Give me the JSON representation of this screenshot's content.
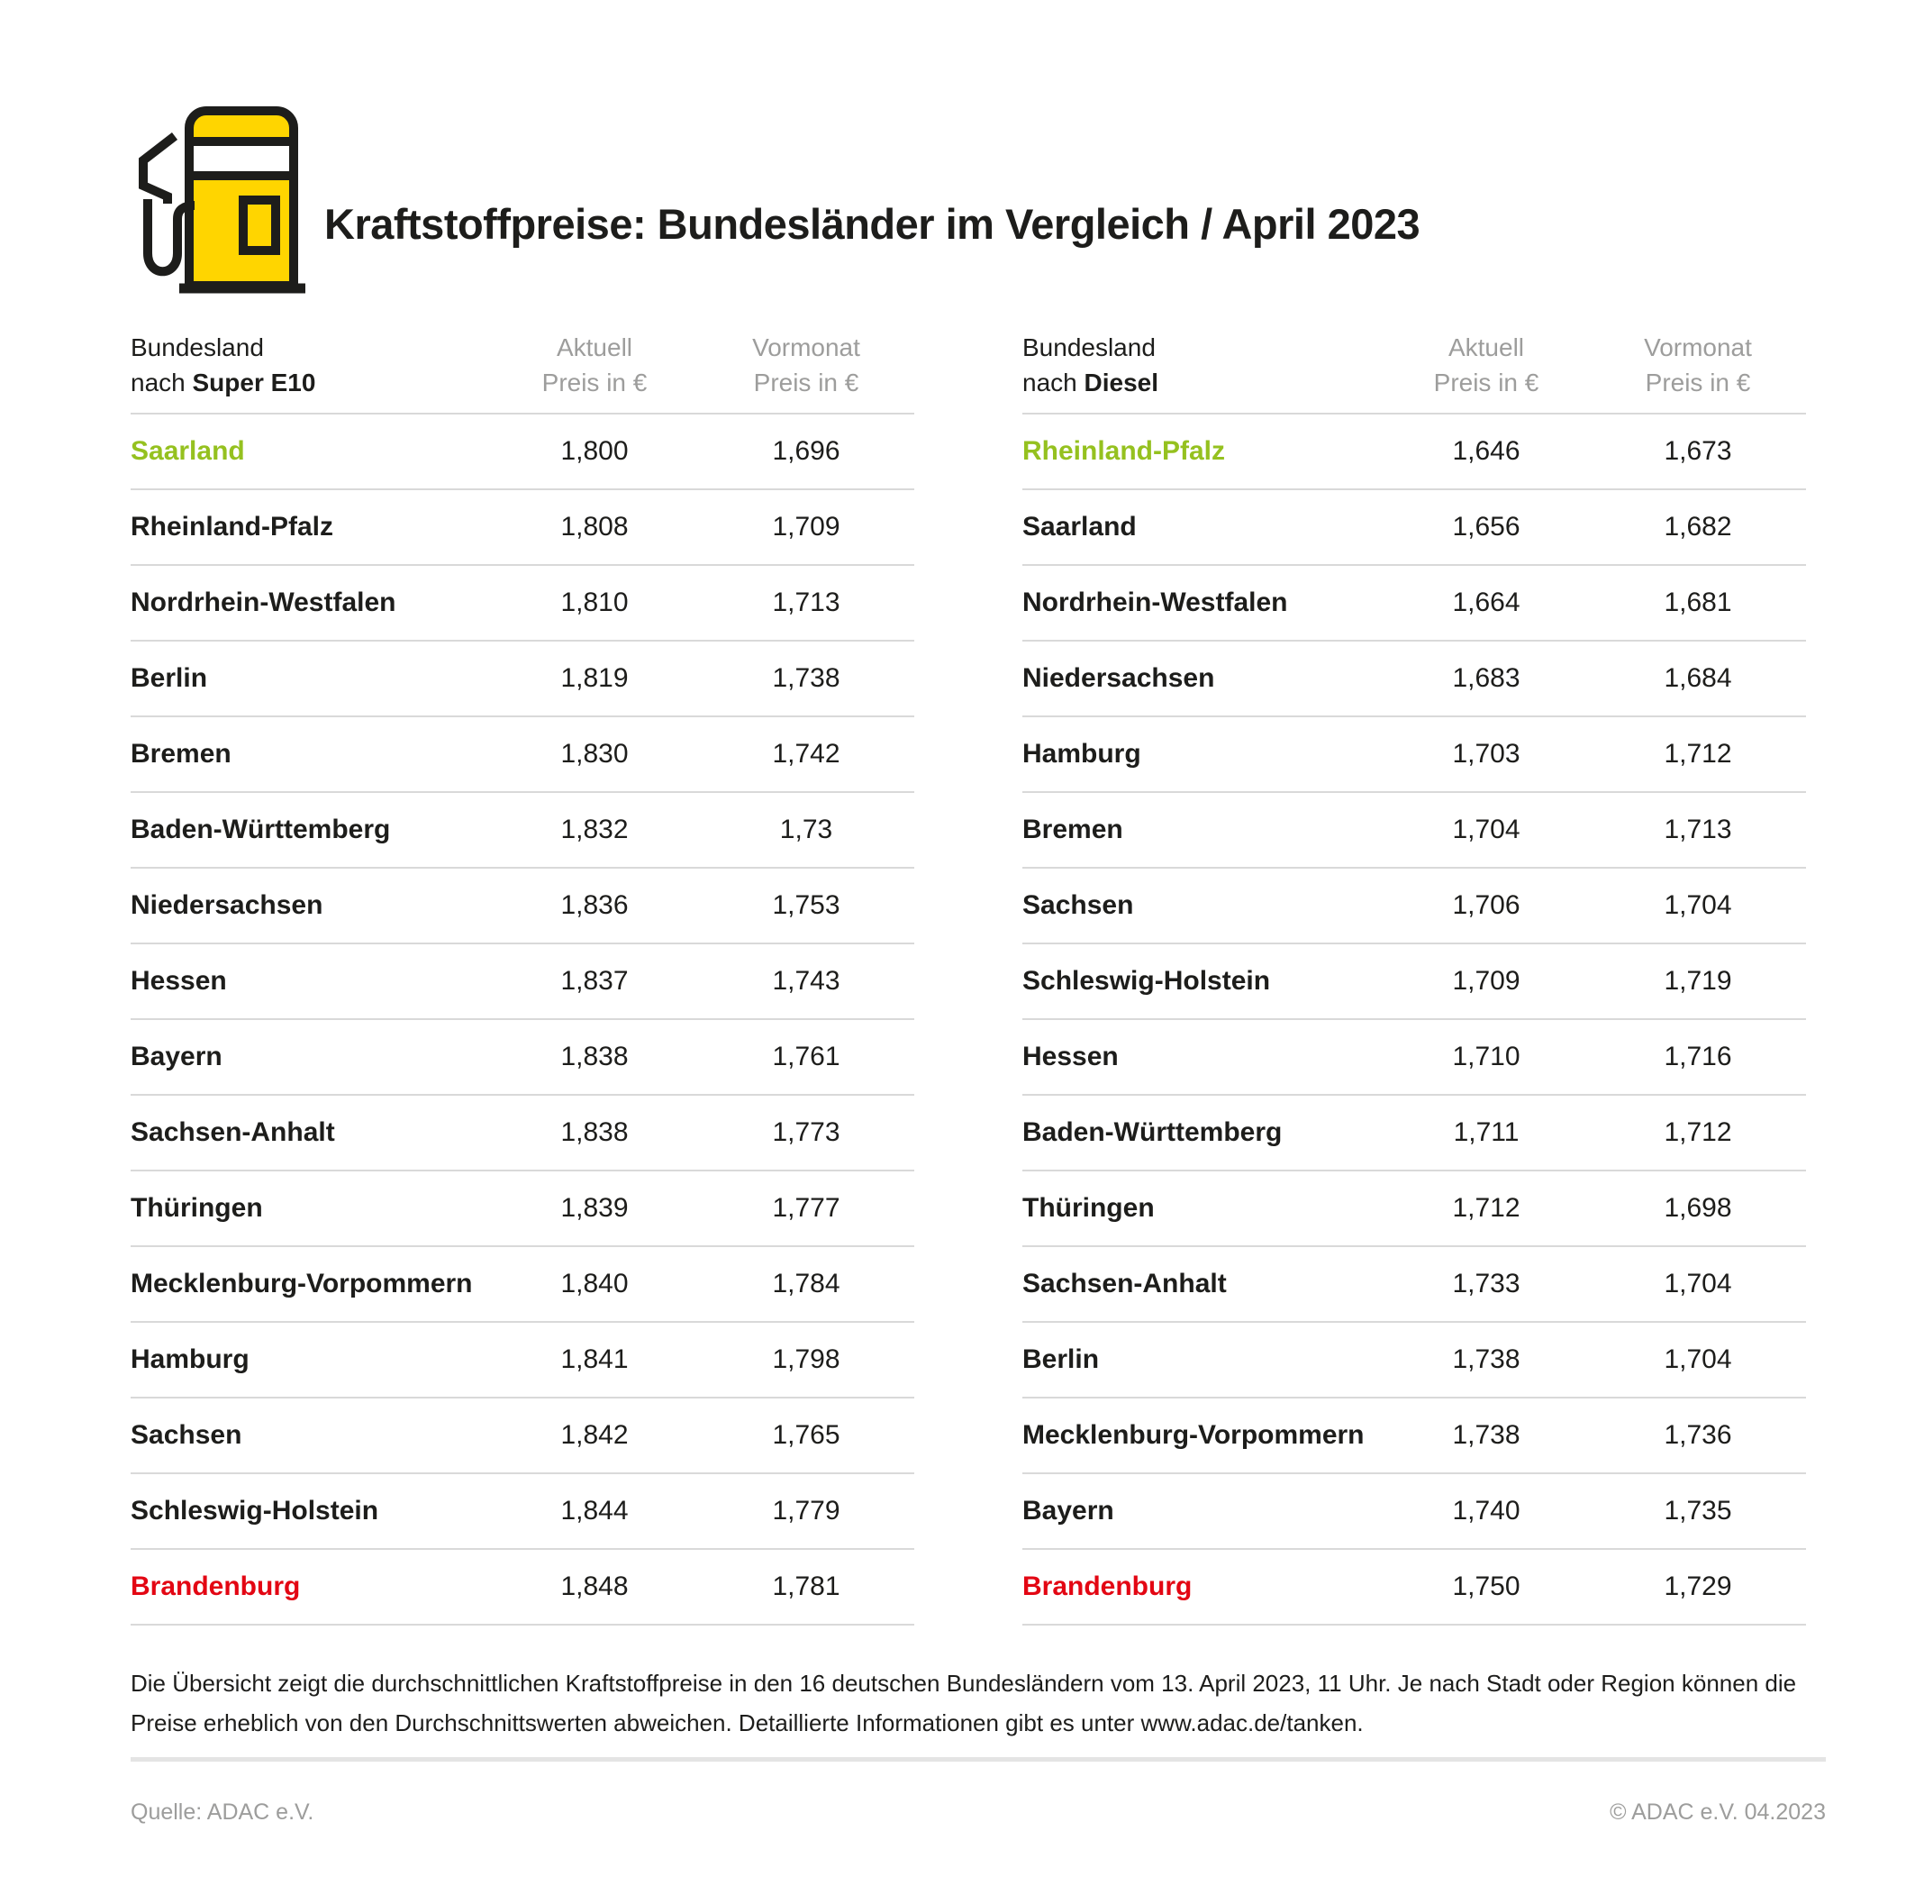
{
  "title": "Kraftstoffpreise: Bundesländer im Vergleich / April 2023",
  "icon": "fuel-pump-icon",
  "colors": {
    "yellow": "#ffd500",
    "green": "#95c11f",
    "red": "#e30613",
    "dark": "#1d1d1b",
    "gray": "#9d9d9c"
  },
  "tables": [
    {
      "id": "super-e10",
      "col_land_line1": "Bundesland",
      "col_land_prefix": "nach ",
      "col_land_fuel": "Super E10",
      "col_current_line1": "Aktuell",
      "col_current_line2": "Preis in €",
      "col_prev_line1": "Vormonat",
      "col_prev_line2": "Preis in €",
      "rows": [
        {
          "land": "Saarland",
          "current": "1,800",
          "previous": "1,696",
          "highlight": "green"
        },
        {
          "land": "Rheinland-Pfalz",
          "current": "1,808",
          "previous": "1,709"
        },
        {
          "land": "Nordrhein-Westfalen",
          "current": "1,810",
          "previous": "1,713"
        },
        {
          "land": "Berlin",
          "current": "1,819",
          "previous": "1,738"
        },
        {
          "land": "Bremen",
          "current": "1,830",
          "previous": "1,742"
        },
        {
          "land": "Baden-Württemberg",
          "current": "1,832",
          "previous": "1,73"
        },
        {
          "land": "Niedersachsen",
          "current": "1,836",
          "previous": "1,753"
        },
        {
          "land": "Hessen",
          "current": "1,837",
          "previous": "1,743"
        },
        {
          "land": "Bayern",
          "current": "1,838",
          "previous": "1,761"
        },
        {
          "land": "Sachsen-Anhalt",
          "current": "1,838",
          "previous": "1,773"
        },
        {
          "land": "Thüringen",
          "current": "1,839",
          "previous": "1,777"
        },
        {
          "land": "Mecklenburg-Vorpommern",
          "current": "1,840",
          "previous": "1,784"
        },
        {
          "land": "Hamburg",
          "current": "1,841",
          "previous": "1,798"
        },
        {
          "land": "Sachsen",
          "current": "1,842",
          "previous": "1,765"
        },
        {
          "land": "Schleswig-Holstein",
          "current": "1,844",
          "previous": "1,779"
        },
        {
          "land": "Brandenburg",
          "current": "1,848",
          "previous": "1,781",
          "highlight": "red"
        }
      ]
    },
    {
      "id": "diesel",
      "col_land_line1": "Bundesland",
      "col_land_prefix": "nach ",
      "col_land_fuel": "Diesel",
      "col_current_line1": "Aktuell",
      "col_current_line2": "Preis in €",
      "col_prev_line1": "Vormonat",
      "col_prev_line2": "Preis in €",
      "rows": [
        {
          "land": "Rheinland-Pfalz",
          "current": "1,646",
          "previous": "1,673",
          "highlight": "green"
        },
        {
          "land": "Saarland",
          "current": "1,656",
          "previous": "1,682"
        },
        {
          "land": "Nordrhein-Westfalen",
          "current": "1,664",
          "previous": "1,681"
        },
        {
          "land": "Niedersachsen",
          "current": "1,683",
          "previous": "1,684"
        },
        {
          "land": "Hamburg",
          "current": "1,703",
          "previous": "1,712"
        },
        {
          "land": "Bremen",
          "current": "1,704",
          "previous": "1,713"
        },
        {
          "land": "Sachsen",
          "current": "1,706",
          "previous": "1,704"
        },
        {
          "land": "Schleswig-Holstein",
          "current": "1,709",
          "previous": "1,719"
        },
        {
          "land": "Hessen",
          "current": "1,710",
          "previous": "1,716"
        },
        {
          "land": "Baden-Württemberg",
          "current": "1,711",
          "previous": "1,712"
        },
        {
          "land": "Thüringen",
          "current": "1,712",
          "previous": "1,698"
        },
        {
          "land": "Sachsen-Anhalt",
          "current": "1,733",
          "previous": "1,704"
        },
        {
          "land": "Berlin",
          "current": "1,738",
          "previous": "1,704"
        },
        {
          "land": "Mecklenburg-Vorpommern",
          "current": "1,738",
          "previous": "1,736"
        },
        {
          "land": "Bayern",
          "current": "1,740",
          "previous": "1,735"
        },
        {
          "land": "Brandenburg",
          "current": "1,750",
          "previous": "1,729",
          "highlight": "red"
        }
      ]
    }
  ],
  "footnote": {
    "line1": "Die Übersicht zeigt die durchschnittlichen Kraftstoffpreise in den 16 deutschen Bundesländern vom 13. April 2023, 11 Uhr. Je nach Stadt oder Region können die",
    "line2": "Preise erheblich von den Durchschnittswerten abweichen. Detaillierte Informationen gibt es unter www.adac.de/tanken."
  },
  "footer": {
    "source": "Quelle: ADAC e.V.",
    "copyright": "© ADAC e.V. 04.2023"
  },
  "chart_data": [
    {
      "type": "table",
      "title": "Bundesland nach Super E10",
      "columns": [
        "Bundesland",
        "Aktuell Preis in €",
        "Vormonat Preis in €"
      ],
      "rows": [
        [
          "Saarland",
          1.8,
          1.696
        ],
        [
          "Rheinland-Pfalz",
          1.808,
          1.709
        ],
        [
          "Nordrhein-Westfalen",
          1.81,
          1.713
        ],
        [
          "Berlin",
          1.819,
          1.738
        ],
        [
          "Bremen",
          1.83,
          1.742
        ],
        [
          "Baden-Württemberg",
          1.832,
          1.73
        ],
        [
          "Niedersachsen",
          1.836,
          1.753
        ],
        [
          "Hessen",
          1.837,
          1.743
        ],
        [
          "Bayern",
          1.838,
          1.761
        ],
        [
          "Sachsen-Anhalt",
          1.838,
          1.773
        ],
        [
          "Thüringen",
          1.839,
          1.777
        ],
        [
          "Mecklenburg-Vorpommern",
          1.84,
          1.784
        ],
        [
          "Hamburg",
          1.841,
          1.798
        ],
        [
          "Sachsen",
          1.842,
          1.765
        ],
        [
          "Schleswig-Holstein",
          1.844,
          1.779
        ],
        [
          "Brandenburg",
          1.848,
          1.781
        ]
      ],
      "notes": "cheapest row highlighted green (Saarland), most expensive highlighted red (Brandenburg)"
    },
    {
      "type": "table",
      "title": "Bundesland nach Diesel",
      "columns": [
        "Bundesland",
        "Aktuell Preis in €",
        "Vormonat Preis in €"
      ],
      "rows": [
        [
          "Rheinland-Pfalz",
          1.646,
          1.673
        ],
        [
          "Saarland",
          1.656,
          1.682
        ],
        [
          "Nordrhein-Westfalen",
          1.664,
          1.681
        ],
        [
          "Niedersachsen",
          1.683,
          1.684
        ],
        [
          "Hamburg",
          1.703,
          1.712
        ],
        [
          "Bremen",
          1.704,
          1.713
        ],
        [
          "Sachsen",
          1.706,
          1.704
        ],
        [
          "Schleswig-Holstein",
          1.709,
          1.719
        ],
        [
          "Hessen",
          1.71,
          1.716
        ],
        [
          "Baden-Württemberg",
          1.711,
          1.712
        ],
        [
          "Thüringen",
          1.712,
          1.698
        ],
        [
          "Sachsen-Anhalt",
          1.733,
          1.704
        ],
        [
          "Berlin",
          1.738,
          1.704
        ],
        [
          "Mecklenburg-Vorpommern",
          1.738,
          1.736
        ],
        [
          "Bayern",
          1.74,
          1.735
        ],
        [
          "Brandenburg",
          1.75,
          1.729
        ]
      ],
      "notes": "cheapest row highlighted green (Rheinland-Pfalz), most expensive highlighted red (Brandenburg)"
    }
  ]
}
